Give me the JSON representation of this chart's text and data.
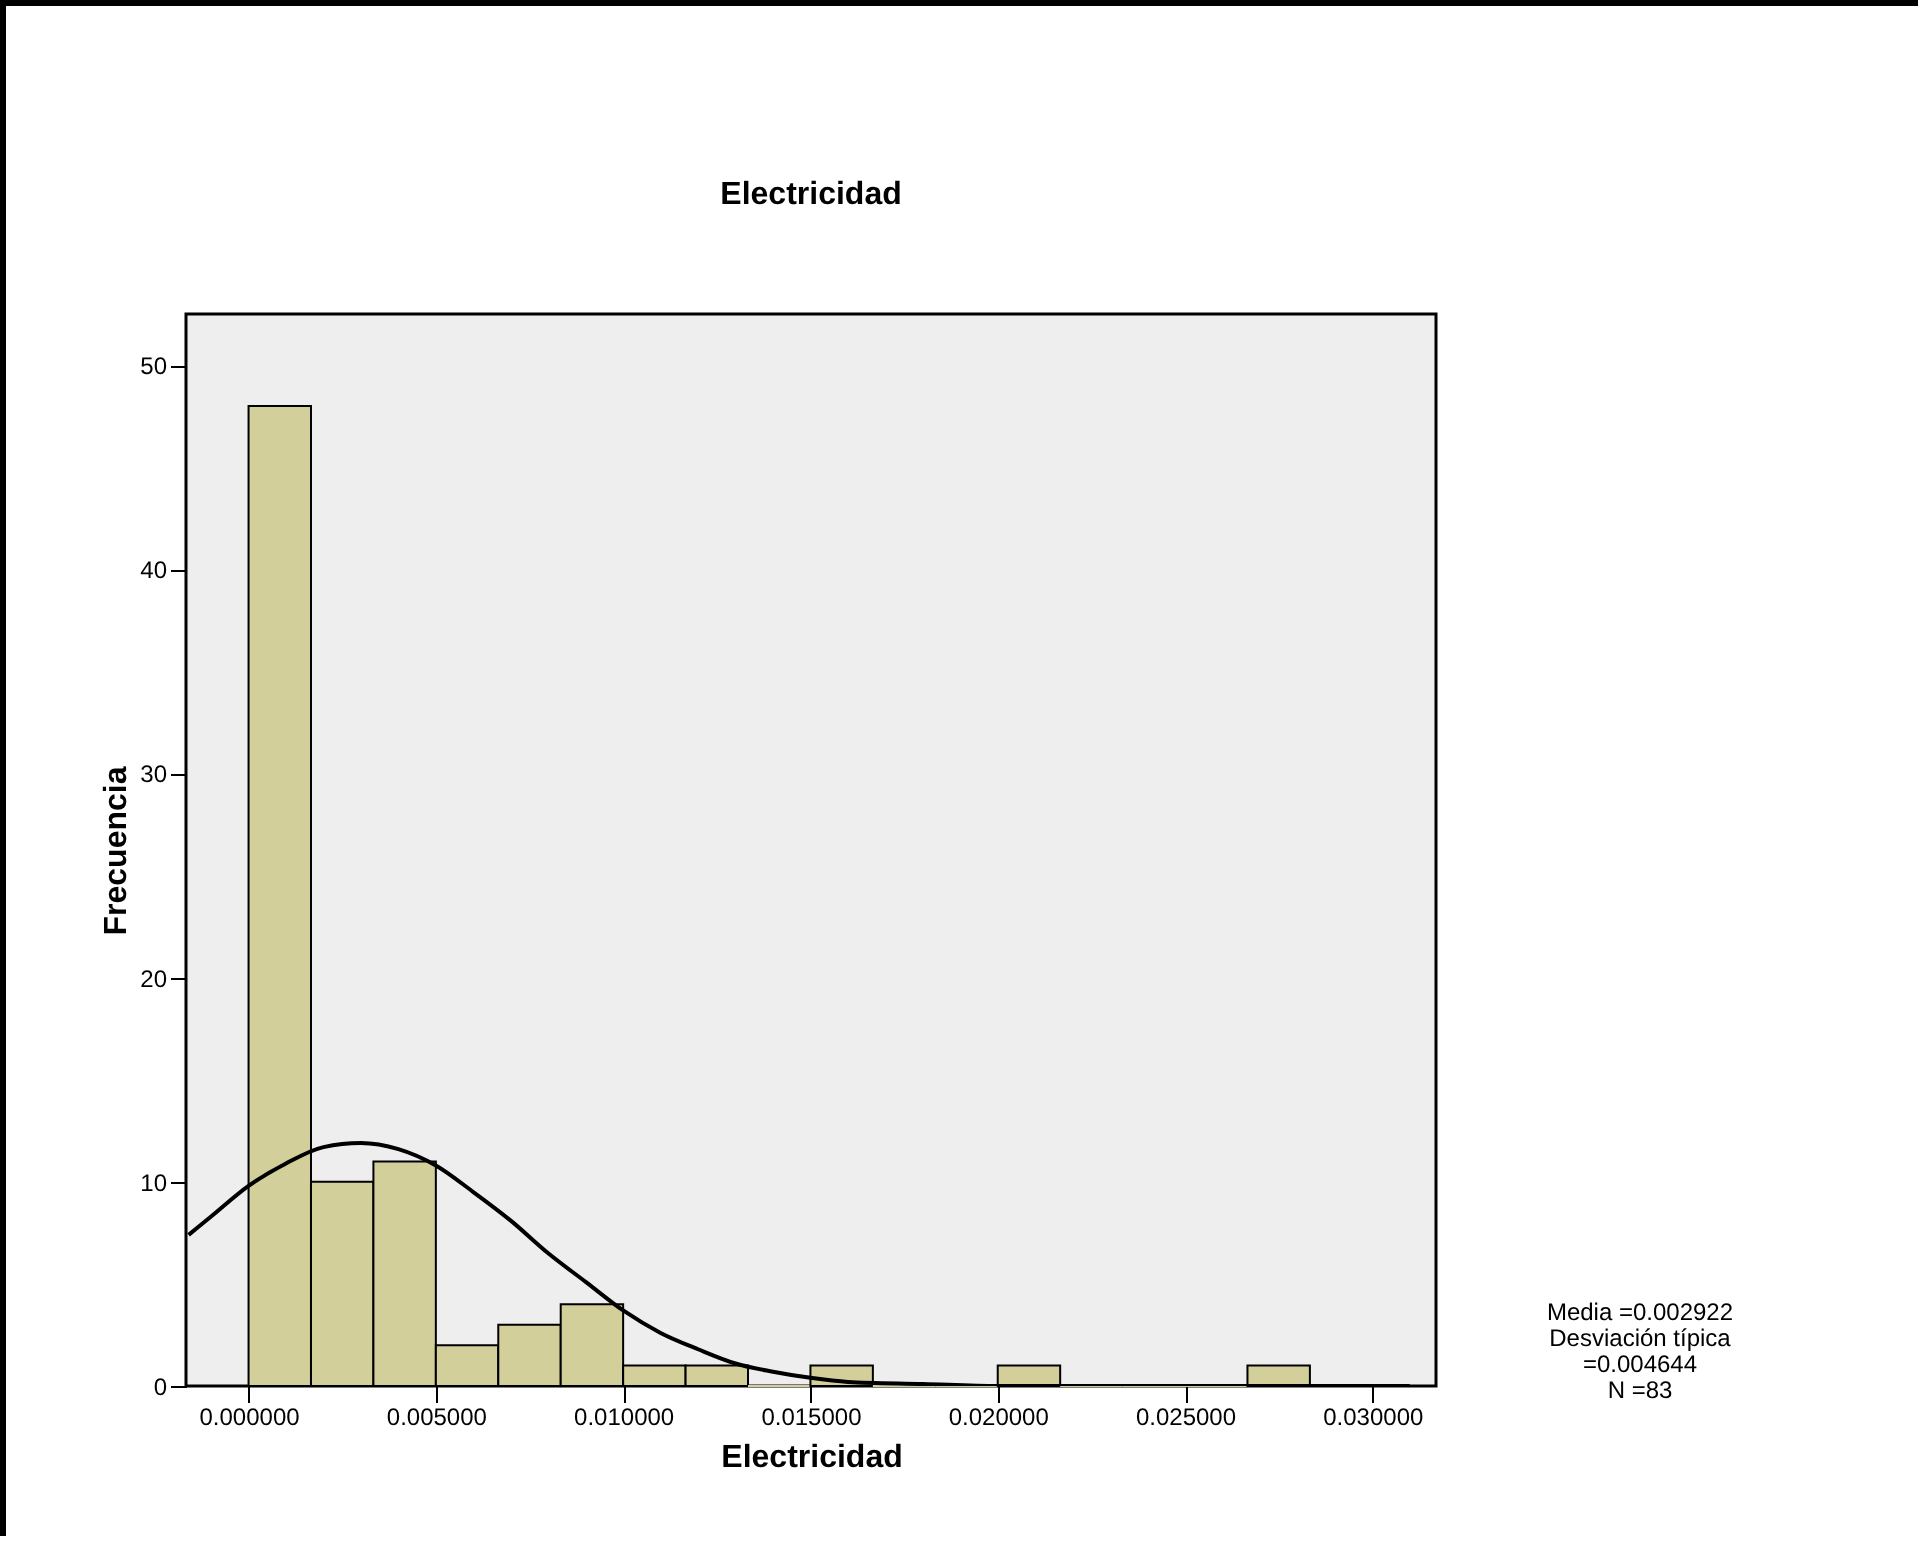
{
  "chart_data": {
    "type": "histogram",
    "title": "Electricidad",
    "xlabel": "Electricidad",
    "ylabel": "Frecuencia",
    "bins": [
      0,
      0.0016667,
      0.0033333,
      0.005,
      0.0066667,
      0.0083333,
      0.01,
      0.0116667,
      0.0133333,
      0.015,
      0.0166667,
      0.0183333,
      0.02,
      0.0216667,
      0.0233333,
      0.025,
      0.0266667,
      0.0283333
    ],
    "values": [
      48,
      10,
      11,
      2,
      3,
      4,
      1,
      1,
      0,
      1,
      0,
      0,
      1,
      0,
      0,
      0,
      1
    ],
    "color": "#d3cf9a",
    "series": [
      {
        "type": "line",
        "color": "#000000",
        "x": [
          -0.0016,
          -0.001,
          0,
          0.001,
          0.002,
          0.003,
          0.004,
          0.005,
          0.006,
          0.007,
          0.008,
          0.009,
          0.01,
          0.011,
          0.012,
          0.013,
          0.014,
          0.015,
          0.016,
          0.018,
          0.02,
          0.022,
          0.026,
          0.031
        ],
        "values": [
          7.4,
          8.3,
          9.8,
          10.9,
          11.7,
          11.9,
          11.6,
          10.8,
          9.5,
          8.1,
          6.5,
          5.1,
          3.7,
          2.6,
          1.8,
          1.1,
          0.7,
          0.4,
          0.2,
          0.1,
          0,
          0,
          0,
          0
        ]
      }
    ],
    "xlim": [
      -0.00167,
      0.0317
    ],
    "ylim": [
      0,
      52.5
    ],
    "xticks": [
      {
        "value": 0,
        "label": "0.000000"
      },
      {
        "value": 0.005,
        "label": "0.005000"
      },
      {
        "value": 0.01,
        "label": "0.010000"
      },
      {
        "value": 0.015,
        "label": "0.015000"
      },
      {
        "value": 0.02,
        "label": "0.020000"
      },
      {
        "value": 0.025,
        "label": "0.025000"
      },
      {
        "value": 0.03,
        "label": "0.030000"
      }
    ],
    "yticks": [
      0,
      10,
      20,
      30,
      40,
      50
    ],
    "grid": false,
    "annotations": [
      "Media =0.002922",
      "Desviación típica =0.004644",
      "N =83"
    ]
  }
}
